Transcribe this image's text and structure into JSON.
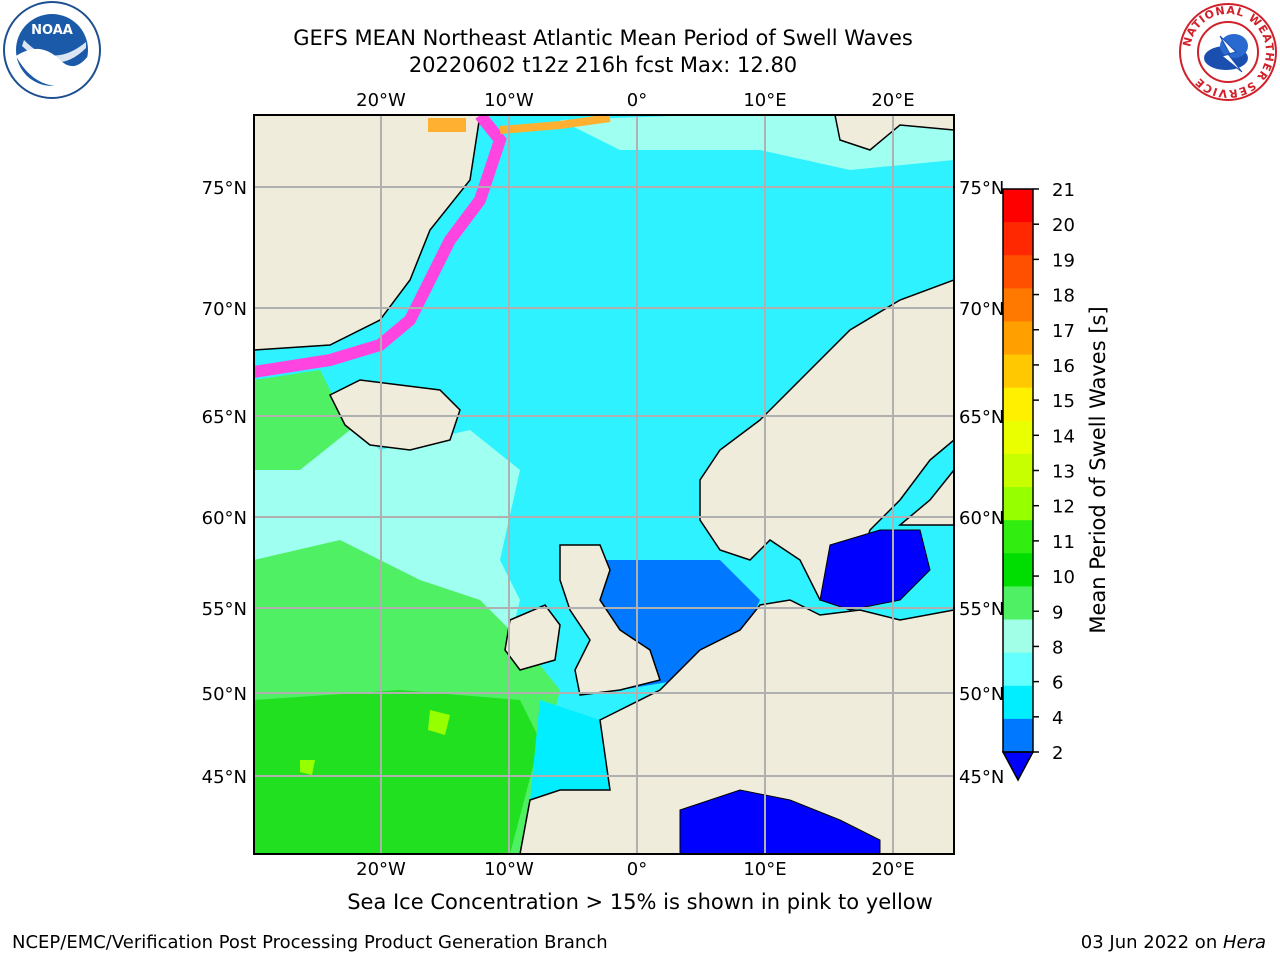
{
  "title": {
    "line1": "GEFS MEAN Northeast Atlantic Mean Period of Swell Waves",
    "line2": "20220602 t12z 216h fcst   Max: 12.80"
  },
  "map": {
    "lon_ticks": [
      "20°W",
      "10°W",
      "0°",
      "10°E",
      "20°E"
    ],
    "lat_ticks": [
      "75°N",
      "70°N",
      "65°N",
      "60°N",
      "55°N",
      "50°N",
      "45°N"
    ],
    "extent": {
      "lon": [
        -29.5,
        24.5
      ],
      "lat": [
        41,
        78
      ]
    }
  },
  "colorbar": {
    "label": "Mean Period of Swell Waves [s]",
    "ticks": [
      "21",
      "20",
      "19",
      "18",
      "17",
      "16",
      "15",
      "14",
      "13",
      "12",
      "11",
      "10",
      "9",
      "8",
      "6",
      "4",
      "2"
    ],
    "colors": [
      "#ff0000",
      "#ff2800",
      "#ff5000",
      "#ff7800",
      "#ffa000",
      "#ffc800",
      "#fff000",
      "#eaff00",
      "#c8ff00",
      "#96ff00",
      "#32ee10",
      "#00dd00",
      "#50f064",
      "#a0ffe6",
      "#64ffff",
      "#00eeff",
      "#0078ff"
    ],
    "extend_color": "#0000ff"
  },
  "caption": "Sea Ice Concentration > 15% is shown in pink to yellow",
  "credit": "NCEP/EMC/Verification Post Processing Product Generation Branch",
  "date": {
    "text": "03 Jun 2022 on ",
    "machine": "Hera"
  },
  "logos": {
    "left": "NOAA",
    "right_ring": "NATIONAL WEATHER SERVICE"
  }
}
